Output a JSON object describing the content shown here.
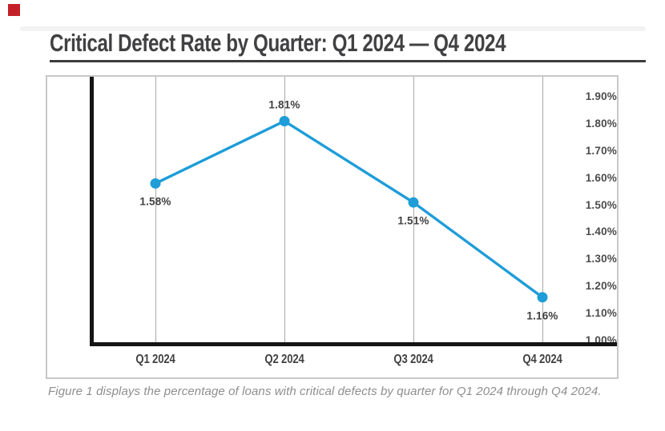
{
  "page": {
    "title": "Critical Defect Rate by Quarter: Q1 2024 — Q4 2024",
    "caption": "Figure 1 displays the percentage of loans with critical defects by quarter for Q1 2024 through Q4 2024.",
    "accent_red": "#c32127"
  },
  "chart_data": {
    "type": "line",
    "title": "Critical Defect Rate by Quarter: Q1 2024 — Q4 2024",
    "categories": [
      "Q1 2024",
      "Q2 2024",
      "Q3 2024",
      "Q4 2024"
    ],
    "series": [
      {
        "name": "Critical Defect Rate",
        "values": [
          1.58,
          1.81,
          1.51,
          1.16
        ]
      }
    ],
    "point_labels": [
      "1.58%",
      "1.81%",
      "1.51%",
      "1.16%"
    ],
    "point_label_positions": [
      "below",
      "above",
      "below",
      "below"
    ],
    "y_ticks": [
      "1.90%",
      "1.80%",
      "1.70%",
      "1.60%",
      "1.50%",
      "1.40%",
      "1.30%",
      "1.20%",
      "1.10%",
      "1.00%"
    ],
    "y_tick_values": [
      1.9,
      1.8,
      1.7,
      1.6,
      1.5,
      1.4,
      1.3,
      1.2,
      1.1,
      1.0
    ],
    "ylim": [
      1.0,
      1.9
    ],
    "xlabel": "",
    "ylabel": "",
    "grid": "vertical-only",
    "legend": "none",
    "line_color": "#1e9dd8",
    "marker": "circle",
    "axis_color": "#141414",
    "gridline_color": "#a9a9a9",
    "label_color": "#414042"
  }
}
